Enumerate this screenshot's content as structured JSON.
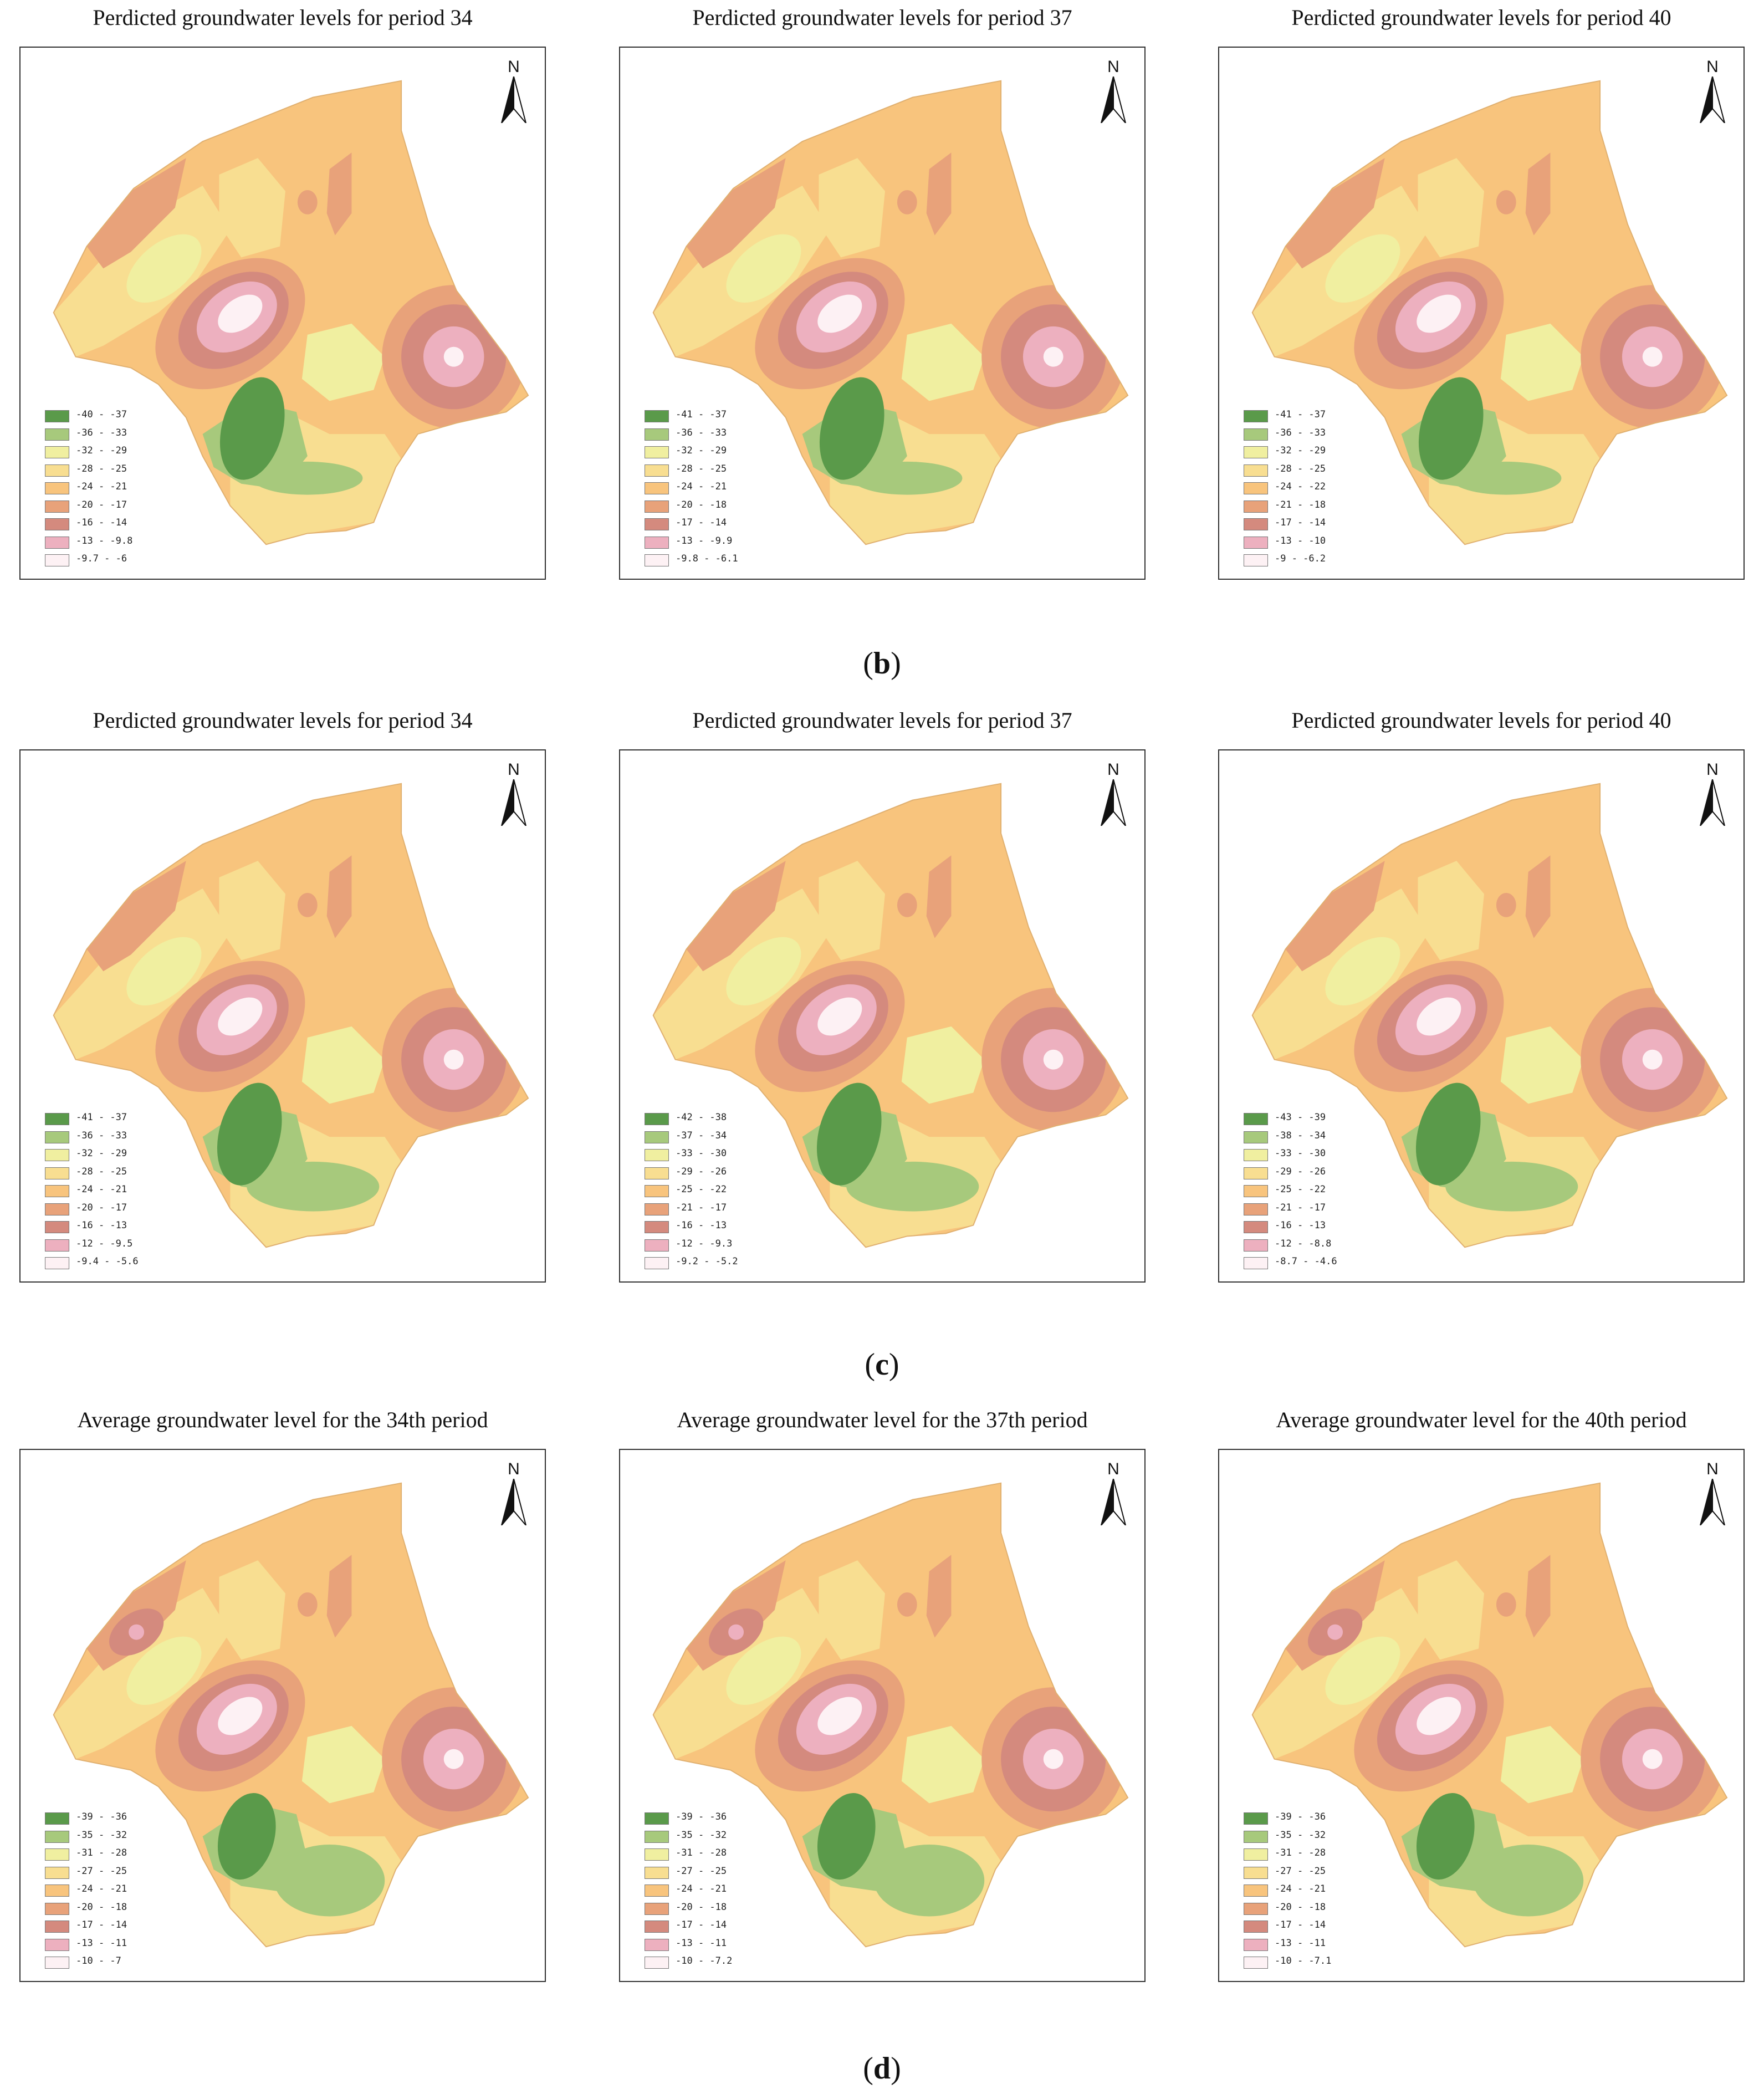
{
  "colors": [
    "#5a9a4a",
    "#a7c97c",
    "#f0efa0",
    "#f8de91",
    "#f8c47d",
    "#e8a27a",
    "#d48a7e",
    "#edb0bf",
    "#fdf1f4"
  ],
  "north_label": "N",
  "rows": [
    {
      "caption": "b",
      "panels": [
        {
          "title": "Perdicted groundwater levels for period 34",
          "legend": [
            "-40 - -37",
            "-36 - -33",
            "-32 - -29",
            "-28 - -25",
            "-24 - -21",
            "-20 - -17",
            "-16 - -14",
            "-13 - -9.8",
            "-9.7 - -6"
          ]
        },
        {
          "title": "Perdicted groundwater levels for period 37",
          "legend": [
            "-41 - -37",
            "-36 - -33",
            "-32 - -29",
            "-28 - -25",
            "-24 - -21",
            "-20 - -18",
            "-17 - -14",
            "-13 - -9.9",
            "-9.8 - -6.1"
          ]
        },
        {
          "title": "Perdicted groundwater levels for period 40",
          "legend": [
            "-41 - -37",
            "-36 - -33",
            "-32 - -29",
            "-28 - -25",
            "-24 - -22",
            "-21 - -18",
            "-17 - -14",
            "-13 - -10",
            "-9 - -6.2"
          ]
        }
      ]
    },
    {
      "caption": "c",
      "panels": [
        {
          "title": "Perdicted groundwater levels for period 34",
          "legend": [
            "-41 - -37",
            "-36 - -33",
            "-32 - -29",
            "-28 - -25",
            "-24 - -21",
            "-20 - -17",
            "-16 - -13",
            "-12 - -9.5",
            "-9.4 - -5.6"
          ]
        },
        {
          "title": "Perdicted groundwater levels for period 37",
          "legend": [
            "-42 - -38",
            "-37 - -34",
            "-33 - -30",
            "-29 - -26",
            "-25 - -22",
            "-21 - -17",
            "-16 - -13",
            "-12 - -9.3",
            "-9.2 - -5.2"
          ]
        },
        {
          "title": "Perdicted groundwater levels for period 40",
          "legend": [
            "-43 - -39",
            "-38 - -34",
            "-33 - -30",
            "-29 - -26",
            "-25 - -22",
            "-21 - -17",
            "-16 - -13",
            "-12 - -8.8",
            "-8.7 - -4.6"
          ]
        }
      ]
    },
    {
      "caption": "d",
      "panels": [
        {
          "title": "Average groundwater level for the 34th period",
          "legend": [
            "-39 - -36",
            "-35 - -32",
            "-31 - -28",
            "-27 - -25",
            "-24 - -21",
            "-20 - -18",
            "-17 - -14",
            "-13 - -11",
            "-10 - -7"
          ]
        },
        {
          "title": "Average groundwater level for the 37th period",
          "legend": [
            "-39 - -36",
            "-35 - -32",
            "-31 - -28",
            "-27 - -25",
            "-24 - -21",
            "-20 - -18",
            "-17 - -14",
            "-13 - -11",
            "-10 - -7.2"
          ]
        },
        {
          "title": "Average groundwater level for the 40th period",
          "legend": [
            "-39 - -36",
            "-35 - -32",
            "-31 - -28",
            "-27 - -25",
            "-24 - -21",
            "-20 - -18",
            "-17 - -14",
            "-13 - -11",
            "-10 - -7.1"
          ]
        }
      ]
    }
  ]
}
